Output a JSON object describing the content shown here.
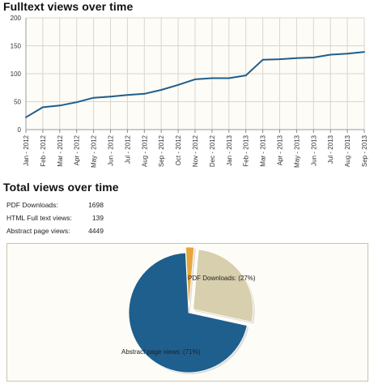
{
  "sections": {
    "fulltext_title": "Fulltext views over time",
    "total_title": "Total views over time"
  },
  "stats": [
    {
      "label": "PDF Downloads:",
      "value": "1698"
    },
    {
      "label": "HTML Full text views:",
      "value": "139"
    },
    {
      "label": "Abstract page views:",
      "value": "4449"
    }
  ],
  "colors": {
    "line": "#1f5d8c",
    "plot_bg": "#fdfcf6",
    "grid": "#d9d6cc",
    "pie_abstract": "#1e5f8e",
    "pie_pdf": "#d8cfae",
    "pie_html": "#e6a63c"
  },
  "chart_data": [
    {
      "type": "line",
      "title": "Fulltext views over time",
      "xlabel": "",
      "ylabel": "",
      "ylim": [
        0,
        200
      ],
      "yticks": [
        0,
        50,
        100,
        150,
        200
      ],
      "grid": true,
      "categories": [
        "Jan - 2012",
        "Feb - 2012",
        "Mar - 2012",
        "Apr - 2012",
        "May - 2012",
        "Jun - 2012",
        "Jul - 2012",
        "Aug - 2012",
        "Sep - 2012",
        "Oct - 2012",
        "Nov - 2012",
        "Dec - 2012",
        "Jan - 2013",
        "Feb - 2013",
        "Mar - 2013",
        "Apr - 2013",
        "May - 2013",
        "Jun - 2013",
        "Jul - 2013",
        "Aug - 2013",
        "Sep - 2013"
      ],
      "series": [
        {
          "values": [
            22,
            40,
            43,
            49,
            57,
            59,
            62,
            64,
            71,
            80,
            90,
            92,
            92,
            97,
            125,
            126,
            128,
            129,
            134,
            136,
            139
          ]
        }
      ]
    },
    {
      "type": "pie",
      "title": "",
      "slices": [
        {
          "label": "Abstract page views: (71%)",
          "value": 4449
        },
        {
          "label": "PDF Downloads: (27%)",
          "value": 1698
        },
        {
          "label": "",
          "value": 139
        }
      ]
    }
  ]
}
